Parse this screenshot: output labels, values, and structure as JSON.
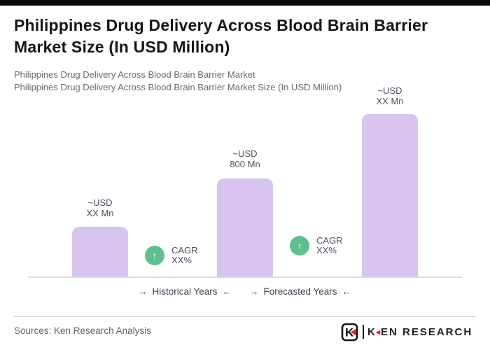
{
  "header": {
    "title_line1": "Philippines Drug Delivery Across Blood Brain Barrier",
    "title_line2": "Market Size (In USD Million)",
    "subtitle_line1": "Philippines Drug Delivery Across Blood Brain Barrier Market",
    "subtitle_line2": "Philippines Drug Delivery Across Blood Brain Barrier Market Size (In USD Million)"
  },
  "chart_data": {
    "type": "bar",
    "title": "Philippines Drug Delivery Across Blood Brain Barrier Market Size (In USD Million)",
    "unit": "USD Million",
    "bars": [
      {
        "label_line1": "~USD",
        "label_line2": "XX Mn"
      },
      {
        "label_line1": "~USD",
        "label_line2": "800 Mn"
      },
      {
        "label_line1": "~USD",
        "label_line2": "XX Mn"
      }
    ],
    "values_labeled": [
      null,
      800,
      null
    ],
    "values_estimated": [
      410,
      800,
      1320
    ],
    "bar_color": "#d9c4f0",
    "cagr_badges": [
      {
        "line1": "CAGR",
        "line2": "XX%"
      },
      {
        "line1": "CAGR",
        "line2": "XX%"
      }
    ],
    "badge_color": "#5fc08f",
    "up_arrow": "↑",
    "axis_periods": [
      {
        "arrow_right": "→",
        "label": "Historical Years",
        "arrow_left": "←"
      },
      {
        "arrow_right": "→",
        "label": "Forecasted Years",
        "arrow_left": "←"
      }
    ],
    "grid": false,
    "legend": "none",
    "ylim": [
      0,
      1400
    ]
  },
  "footer": {
    "sources": "Sources: Ken Research Analysis",
    "logo": {
      "icon_letter": "K",
      "text_k": "K",
      "red_triangle": "◀",
      "text_rest": "EN RESEARCH"
    }
  }
}
